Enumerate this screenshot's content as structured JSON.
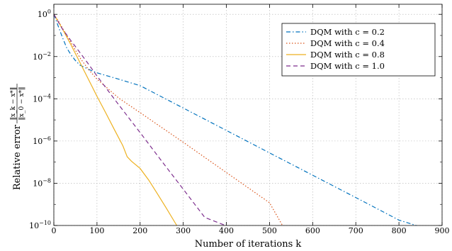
{
  "chart_data": {
    "type": "line",
    "title": "",
    "xlabel": "Number of iterations k",
    "ylabel": "Relative error",
    "ylabel_fraction": {
      "numerator": "‖x_k − x*‖",
      "denominator": "‖x_0 − x*‖"
    },
    "xlim": [
      0,
      900
    ],
    "ylim": [
      1e-10,
      3
    ],
    "yscale": "log",
    "xticks": [
      "0",
      "100",
      "200",
      "300",
      "400",
      "500",
      "600",
      "700",
      "800",
      "900"
    ],
    "yticks": [
      {
        "value": 1.0,
        "base": "10",
        "exp": "0"
      },
      {
        "value": 0.01,
        "base": "10",
        "exp": "−2"
      },
      {
        "value": 0.0001,
        "base": "10",
        "exp": "−4"
      },
      {
        "value": 1e-06,
        "base": "10",
        "exp": "−6"
      },
      {
        "value": 1e-08,
        "base": "10",
        "exp": "−8"
      },
      {
        "value": 1e-10,
        "base": "10",
        "exp": "−10"
      }
    ],
    "grid": true,
    "legend_position": "top-right",
    "series": [
      {
        "name": "DQM with c = 0.2",
        "color": "#0072BD",
        "dash": "dashdot",
        "x": [
          0,
          10,
          20,
          30,
          40,
          50,
          60,
          80,
          100,
          150,
          200,
          300,
          400,
          500,
          600,
          700,
          800,
          840
        ],
        "y": [
          1,
          0.28,
          0.08,
          0.025,
          0.012,
          0.0065,
          0.004,
          0.0025,
          0.0017,
          0.00085,
          0.00042,
          3.63e-05,
          3.16e-06,
          2.75e-07,
          2.4e-08,
          2.1e-09,
          1.8e-10,
          1e-10
        ]
      },
      {
        "name": "DQM with c = 0.4",
        "color": "#D95319",
        "dash": "dotted",
        "x": [
          0,
          10,
          20,
          40,
          60,
          80,
          100,
          150,
          200,
          300,
          400,
          500,
          530
        ],
        "y": [
          1,
          0.5,
          0.22,
          0.045,
          0.009,
          0.0025,
          0.00085,
          0.00011,
          2.2e-05,
          8.7e-07,
          3.2e-08,
          1.2e-09,
          1e-10
        ]
      },
      {
        "name": "DQM with c = 0.8",
        "color": "#EDB120",
        "dash": "solid",
        "x": [
          0,
          10,
          20,
          40,
          60,
          80,
          100,
          120,
          140,
          160,
          170,
          180,
          200,
          220,
          240,
          260,
          285
        ],
        "y": [
          1,
          0.45,
          0.2,
          0.035,
          0.0055,
          0.00085,
          0.00013,
          2.2e-05,
          3.6e-06,
          6e-07,
          1.8e-07,
          1.1e-07,
          5e-08,
          1.4e-08,
          3.2e-09,
          7e-10,
          1e-10
        ]
      },
      {
        "name": "DQM with c = 1.0",
        "color": "#7E2F8E",
        "dash": "dashed",
        "x": [
          0,
          20,
          40,
          60,
          80,
          100,
          150,
          200,
          250,
          300,
          350,
          398
        ],
        "y": [
          1,
          0.2,
          0.055,
          0.016,
          0.0045,
          0.0012,
          5.37e-05,
          2.5e-06,
          1.12e-07,
          5.2e-09,
          2.4e-10,
          1e-10
        ]
      }
    ]
  }
}
